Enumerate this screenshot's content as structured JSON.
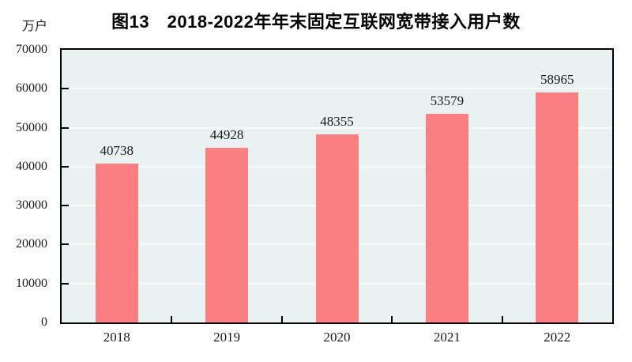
{
  "page": {
    "background": "#ffffff"
  },
  "chart_data": {
    "type": "bar",
    "title": "图13　2018-2022年年末固定互联网宽带接入用户数",
    "unit_label": "万户",
    "categories": [
      "2018",
      "2019",
      "2020",
      "2021",
      "2022"
    ],
    "values": [
      40738,
      44928,
      48355,
      53579,
      58965
    ],
    "xlabel": "",
    "ylabel": "万户",
    "ylim": [
      0,
      70000
    ],
    "yticks": [
      0,
      10000,
      20000,
      30000,
      40000,
      50000,
      60000,
      70000
    ],
    "grid": true,
    "legend_position": "none",
    "colors": {
      "bar": "#fb7f80",
      "plot_background": "#eaf1f2",
      "gridline": "#f7fbfb",
      "axis": "#000000",
      "text": "#1a1a1a"
    }
  }
}
